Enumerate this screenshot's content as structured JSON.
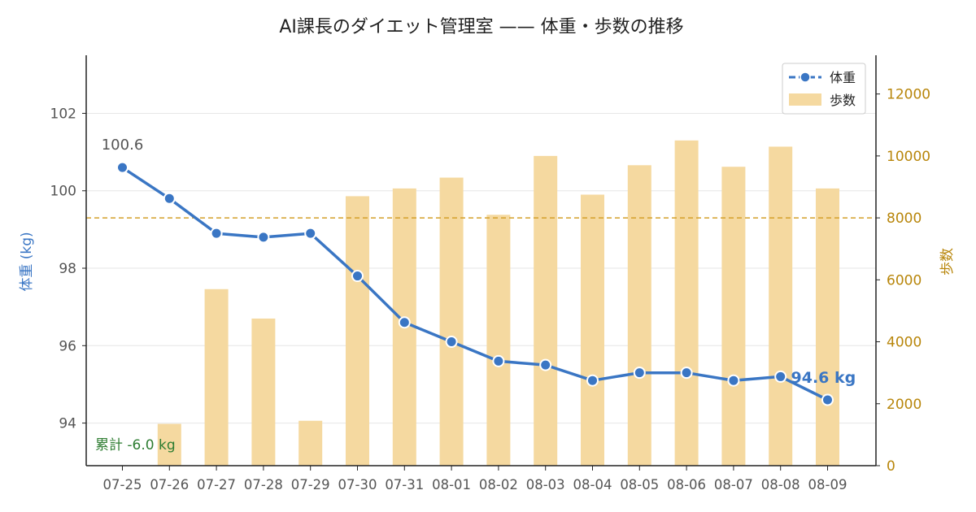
{
  "chart_data": {
    "type": "bar+line",
    "title": "AI課長のダイエット管理室 —— 体重・歩数の推移",
    "categories": [
      "07-25",
      "07-26",
      "07-27",
      "07-28",
      "07-29",
      "07-30",
      "07-31",
      "08-01",
      "08-02",
      "08-03",
      "08-04",
      "08-05",
      "08-06",
      "08-07",
      "08-08",
      "08-09"
    ],
    "series": [
      {
        "name": "体重",
        "kind": "line",
        "axis": "left",
        "values": [
          100.6,
          99.8,
          98.9,
          98.8,
          98.9,
          97.8,
          96.6,
          96.1,
          95.6,
          95.5,
          95.1,
          95.3,
          95.3,
          95.1,
          95.2,
          94.6
        ]
      },
      {
        "name": "歩数",
        "kind": "bar",
        "axis": "right",
        "values": [
          0,
          1350,
          5700,
          4750,
          1450,
          8700,
          8950,
          9300,
          8100,
          10000,
          8750,
          9700,
          10500,
          9650,
          10300,
          8950
        ]
      }
    ],
    "ylabel": "体重 (kg)",
    "y2label": "歩数",
    "ylim": [
      92.9,
      103.5
    ],
    "y2lim": [
      0,
      13250
    ],
    "yticks": [
      "94",
      "96",
      "98",
      "100",
      "102"
    ],
    "y2ticks": [
      "0",
      "2000",
      "4000",
      "6000",
      "8000",
      "10000",
      "12000"
    ],
    "reference_line": {
      "axis": "right",
      "value": 8000
    },
    "annotations": {
      "start": "100.6",
      "end": "94.6 kg",
      "cumulative": "累計 -6.0 kg"
    },
    "grid": true,
    "legend_position": "top-right",
    "colors": {
      "weight": "#3a76c4",
      "steps": "#f5d9a0",
      "reference": "#d4a02a",
      "right_axis_text": "#b8860b",
      "cumulative": "#2e7d32",
      "tick_text": "#555555",
      "grid": "#e6e6e6"
    }
  }
}
